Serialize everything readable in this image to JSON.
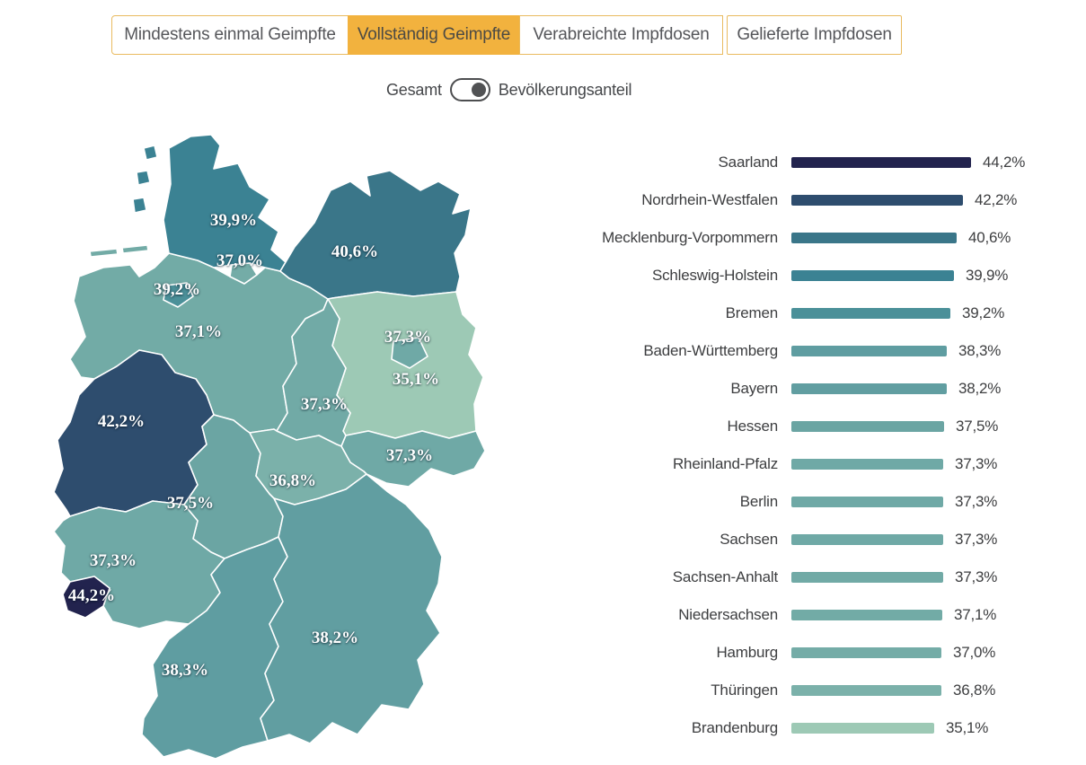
{
  "header": {
    "tabs": [
      {
        "label": "Mindestens einmal Geimpfte",
        "active": false
      },
      {
        "label": "Vollständig Geimpfte",
        "active": true
      },
      {
        "label": "Verabreichte Impfdosen",
        "active": false
      },
      {
        "label": "Gelieferte Impfdosen",
        "active": false
      }
    ],
    "tab_active_bg": "#f2b23e",
    "tab_border": "#e9bb60"
  },
  "toggle": {
    "left_label": "Gesamt",
    "right_label": "Bevölkerungsanteil",
    "selected": "right"
  },
  "chart_data": {
    "type": "bar",
    "subtype": "choropleth-map-plus-horizontal-bars",
    "title": "Vollständig Geimpfte — Bevölkerungsanteil",
    "unit": "%",
    "xlim": [
      0,
      48
    ],
    "legend_position": "none",
    "states": [
      {
        "id": "SL",
        "name": "Saarland",
        "value": 44.2,
        "label": "44,2%",
        "color": "#22234e"
      },
      {
        "id": "NW",
        "name": "Nordrhein-Westfalen",
        "value": 42.2,
        "label": "42,2%",
        "color": "#2e4d6e"
      },
      {
        "id": "MV",
        "name": "Mecklenburg-Vorpommern",
        "value": 40.6,
        "label": "40,6%",
        "color": "#3a7689"
      },
      {
        "id": "SH",
        "name": "Schleswig-Holstein",
        "value": 39.9,
        "label": "39,9%",
        "color": "#3b8293"
      },
      {
        "id": "HB",
        "name": "Bremen",
        "value": 39.2,
        "label": "39,2%",
        "color": "#4b9099"
      },
      {
        "id": "BW",
        "name": "Baden-Württemberg",
        "value": 38.3,
        "label": "38,3%",
        "color": "#5f9da1"
      },
      {
        "id": "BY",
        "name": "Bayern",
        "value": 38.2,
        "label": "38,2%",
        "color": "#619ea1"
      },
      {
        "id": "HE",
        "name": "Hessen",
        "value": 37.5,
        "label": "37,5%",
        "color": "#6ba5a3"
      },
      {
        "id": "RP",
        "name": "Rheinland-Pfalz",
        "value": 37.3,
        "label": "37,3%",
        "color": "#6fa9a6"
      },
      {
        "id": "BE",
        "name": "Berlin",
        "value": 37.3,
        "label": "37,3%",
        "color": "#6fa9a6"
      },
      {
        "id": "SN",
        "name": "Sachsen",
        "value": 37.3,
        "label": "37,3%",
        "color": "#6fa9a6"
      },
      {
        "id": "ST",
        "name": "Sachsen-Anhalt",
        "value": 37.3,
        "label": "37,3%",
        "color": "#71aaa6"
      },
      {
        "id": "NI",
        "name": "Niedersachsen",
        "value": 37.1,
        "label": "37,1%",
        "color": "#72aba6"
      },
      {
        "id": "HH",
        "name": "Hamburg",
        "value": 37.0,
        "label": "37,0%",
        "color": "#74aca7"
      },
      {
        "id": "TH",
        "name": "Thüringen",
        "value": 36.8,
        "label": "36,8%",
        "color": "#7bb1aa"
      },
      {
        "id": "BB",
        "name": "Brandenburg",
        "value": 35.1,
        "label": "35,1%",
        "color": "#9dc9b5"
      }
    ],
    "bar_order": [
      "SL",
      "NW",
      "MV",
      "SH",
      "HB",
      "BW",
      "BY",
      "HE",
      "RP",
      "BE",
      "SN",
      "ST",
      "NI",
      "HH",
      "TH",
      "BB"
    ]
  }
}
